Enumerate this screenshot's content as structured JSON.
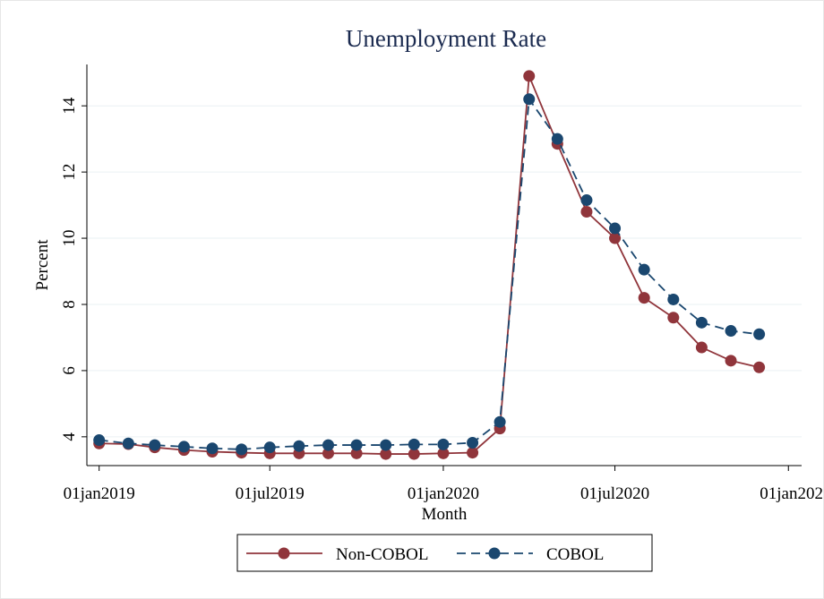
{
  "chart_data": {
    "type": "line",
    "title": "Unemployment Rate",
    "x_label": "Month",
    "y_label": "Percent",
    "x": [
      "2019-01-01",
      "2019-02-01",
      "2019-03-01",
      "2019-04-01",
      "2019-05-01",
      "2019-06-01",
      "2019-07-01",
      "2019-08-01",
      "2019-09-01",
      "2019-10-01",
      "2019-11-01",
      "2019-12-01",
      "2020-01-01",
      "2020-02-01",
      "2020-03-01",
      "2020-04-01",
      "2020-05-01",
      "2020-06-01",
      "2020-07-01",
      "2020-08-01",
      "2020-09-01",
      "2020-10-01",
      "2020-11-01",
      "2020-12-01"
    ],
    "series": [
      {
        "name": "Non-COBOL",
        "color": "#90353b",
        "dash": "solid",
        "values": [
          3.8,
          3.78,
          3.68,
          3.6,
          3.55,
          3.52,
          3.5,
          3.5,
          3.5,
          3.5,
          3.48,
          3.48,
          3.5,
          3.52,
          4.25,
          14.9,
          12.85,
          10.8,
          10.0,
          8.2,
          7.6,
          6.7,
          6.3,
          6.1
        ]
      },
      {
        "name": "COBOL",
        "color": "#1a476f",
        "dash": "dashed",
        "values": [
          3.9,
          3.8,
          3.75,
          3.7,
          3.65,
          3.62,
          3.68,
          3.72,
          3.75,
          3.75,
          3.75,
          3.77,
          3.77,
          3.82,
          4.45,
          14.2,
          13.0,
          11.15,
          10.3,
          9.05,
          8.15,
          7.45,
          7.2,
          7.1
        ]
      }
    ],
    "xlim": [
      "2018-12-19",
      "2021-01-15"
    ],
    "xticks": [
      {
        "value": "2019-01-01",
        "label": "01jan2019"
      },
      {
        "value": "2019-07-01",
        "label": "01jul2019"
      },
      {
        "value": "2020-01-01",
        "label": "01jan2020"
      },
      {
        "value": "2020-07-01",
        "label": "01jul2020"
      },
      {
        "value": "2021-01-01",
        "label": "01jan202"
      }
    ],
    "ylim": [
      3.13,
      15.25
    ],
    "yticks": [
      4,
      6,
      8,
      10,
      12,
      14
    ],
    "grid": true,
    "legend": "bottom"
  }
}
